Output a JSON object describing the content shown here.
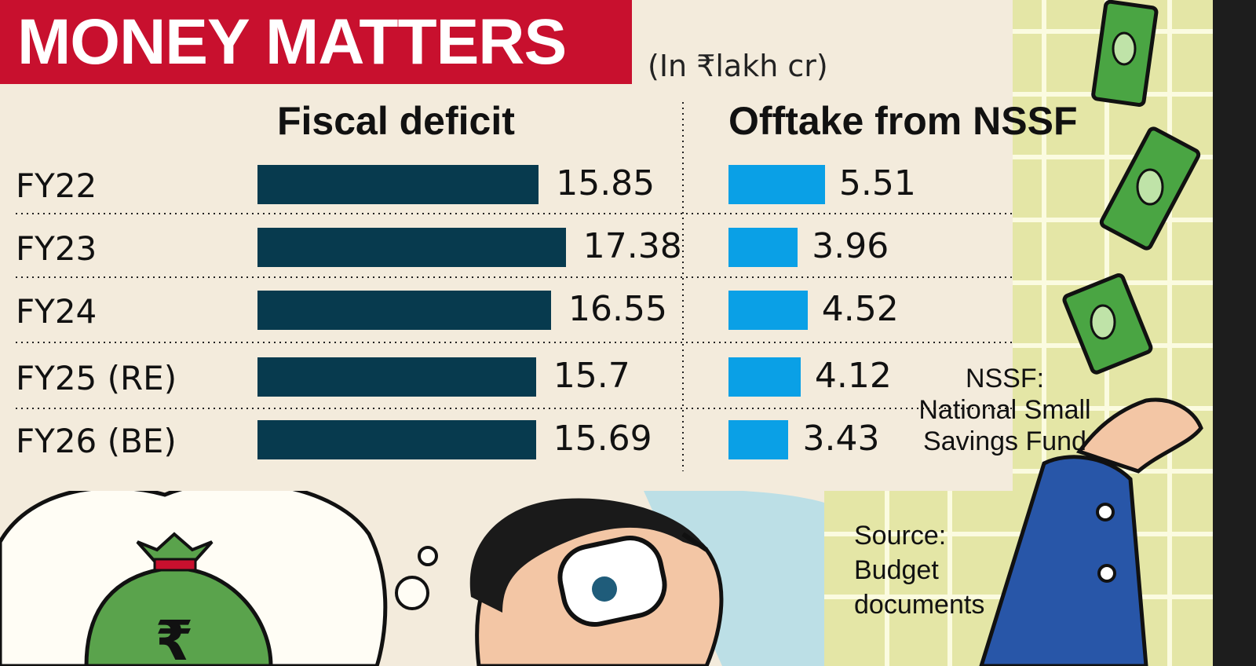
{
  "header": {
    "title": "MONEY MATTERS",
    "unit": "(In ₹lakh cr)"
  },
  "colors": {
    "title_bg": "#c8102e",
    "fiscal_bar": "#073a4e",
    "nssf_bar": "#0aa0e6",
    "background": "#f3ebdc"
  },
  "chart_data": {
    "type": "bar",
    "orientation": "horizontal",
    "categories": [
      "FY22",
      "FY23",
      "FY24",
      "FY25 (RE)",
      "FY26 (BE)"
    ],
    "panels": [
      {
        "title": "Fiscal deficit",
        "values": [
          15.85,
          17.38,
          16.55,
          15.7,
          15.69
        ],
        "labels": [
          "15.85",
          "17.38",
          "16.55",
          "15.7",
          "15.69"
        ]
      },
      {
        "title": "Offtake from NSSF",
        "values": [
          5.51,
          3.96,
          4.52,
          4.12,
          3.43
        ],
        "labels": [
          "5.51",
          "3.96",
          "4.52",
          "4.12",
          "3.43"
        ]
      }
    ]
  },
  "footnote": {
    "line1": "NSSF:",
    "line2": "National Small",
    "line3": "Savings Fund"
  },
  "source": {
    "line1": "Source:",
    "line2": "Budget",
    "line3": "documents"
  }
}
